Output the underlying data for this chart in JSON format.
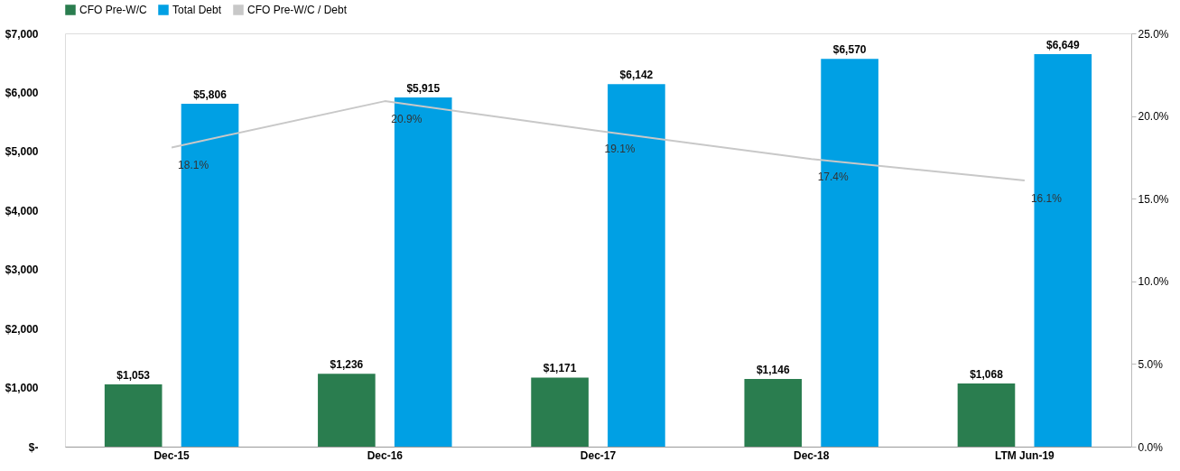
{
  "chart_data": {
    "type": "bar",
    "categories": [
      "Dec-15",
      "Dec-16",
      "Dec-17",
      "Dec-18",
      "LTM Jun-19"
    ],
    "series": [
      {
        "name": "CFO Pre-W/C",
        "color": "#2a7d4f",
        "values": [
          1053,
          1236,
          1171,
          1146,
          1068
        ],
        "value_labels": [
          "$1,053",
          "$1,236",
          "$1,171",
          "$1,146",
          "$1,068"
        ]
      },
      {
        "name": "Total Debt",
        "color": "#00a0e4",
        "values": [
          5806,
          5915,
          6142,
          6570,
          6649
        ],
        "value_labels": [
          "$5,806",
          "$5,915",
          "$6,142",
          "$6,570",
          "$6,649"
        ]
      },
      {
        "name": "CFO Pre-W/C / Debt",
        "type": "line",
        "axis": "y2",
        "color": "#c8c8c8",
        "values": [
          18.1,
          20.9,
          19.1,
          17.4,
          16.1
        ],
        "value_labels": [
          "18.1%",
          "20.9%",
          "19.1%",
          "17.4%",
          "16.1%"
        ]
      }
    ],
    "ylim": [
      0,
      7000
    ],
    "yticks": [
      {
        "value": 0,
        "label": "$-"
      },
      {
        "value": 1000,
        "label": "$1,000"
      },
      {
        "value": 2000,
        "label": "$2,000"
      },
      {
        "value": 3000,
        "label": "$3,000"
      },
      {
        "value": 4000,
        "label": "$4,000"
      },
      {
        "value": 5000,
        "label": "$5,000"
      },
      {
        "value": 6000,
        "label": "$6,000"
      },
      {
        "value": 7000,
        "label": "$7,000"
      }
    ],
    "y2lim": [
      0,
      25
    ],
    "y2ticks": [
      {
        "value": 0,
        "label": "0.0%"
      },
      {
        "value": 5,
        "label": "5.0%"
      },
      {
        "value": 10,
        "label": "10.0%"
      },
      {
        "value": 15,
        "label": "15.0%"
      },
      {
        "value": 20,
        "label": "20.0%"
      },
      {
        "value": 25,
        "label": "25.0%"
      }
    ],
    "grid": false,
    "legend": "top",
    "marker": "none",
    "line_style": "solid"
  }
}
